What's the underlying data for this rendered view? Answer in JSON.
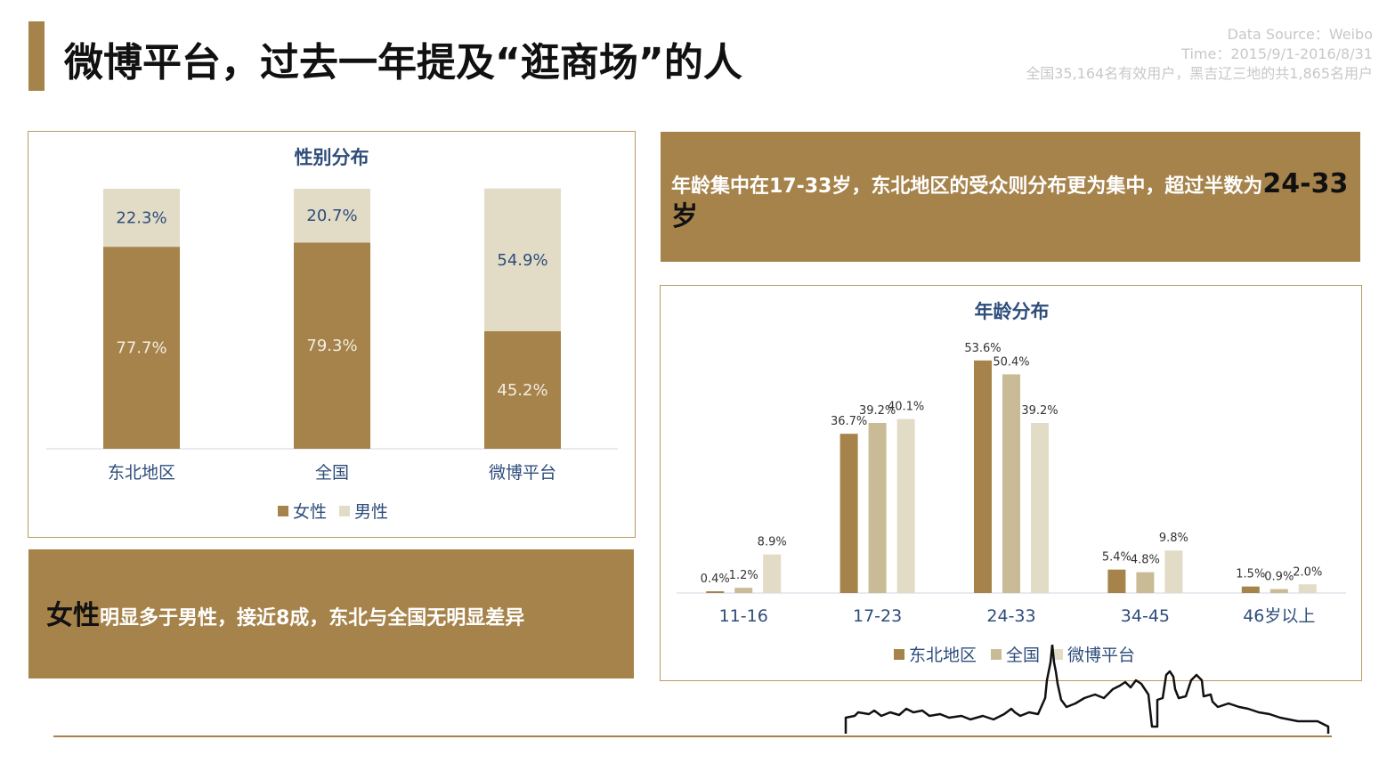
{
  "header": {
    "title": "微博平台，过去一年提及“逛商场”的人",
    "source_line1": "Data Source：Weibo",
    "source_line2": "Time：2015/9/1-2016/8/31",
    "source_line3": "全国35,164名有效用户，黑吉辽三地的共1,865名用户"
  },
  "gender_note": {
    "highlight": "女性",
    "rest": "明显多于男性，接近8成，东北与全国无明显差异"
  },
  "age_note": {
    "text_main": "年龄集中在17-33岁，东北地区的受众则分布更为集中，超过半数为",
    "text_big": "24-33岁"
  },
  "colors": {
    "gold": "#a6834b",
    "khaki": "#c9bb96",
    "cream": "#e2dcc6",
    "title_blue": "#2e4d7b"
  },
  "chart_data": [
    {
      "type": "bar",
      "stacked": true,
      "title": "性别分布",
      "categories": [
        "东北地区",
        "全国",
        "微博平台"
      ],
      "series": [
        {
          "name": "女性",
          "values": [
            77.7,
            79.3,
            45.2
          ],
          "labels": [
            "77.7%",
            "79.3%",
            "45.2%"
          ]
        },
        {
          "name": "男性",
          "values": [
            22.3,
            20.7,
            54.9
          ],
          "labels": [
            "22.3%",
            "20.7%",
            "54.9%"
          ]
        }
      ],
      "ylim": [
        0,
        100
      ],
      "legend": "bottom"
    },
    {
      "type": "bar",
      "title": "年龄分布",
      "categories": [
        "11-16",
        "17-23",
        "24-33",
        "34-45",
        "46岁以上"
      ],
      "series": [
        {
          "name": "东北地区",
          "values": [
            0.4,
            36.7,
            53.6,
            5.4,
            1.5
          ],
          "labels": [
            "0.4%",
            "36.7%",
            "53.6%",
            "5.4%",
            "1.5%"
          ]
        },
        {
          "name": "全国",
          "values": [
            1.2,
            39.2,
            50.4,
            4.8,
            0.9
          ],
          "labels": [
            "1.2%",
            "39.2%",
            "50.4%",
            "4.8%",
            "0.9%"
          ]
        },
        {
          "name": "微博平台",
          "values": [
            8.9,
            40.1,
            39.2,
            9.8,
            2.0
          ],
          "labels": [
            "8.9%",
            "40.1%",
            "39.2%",
            "9.8%",
            "2.0%"
          ]
        }
      ],
      "ylim": [
        0,
        55
      ],
      "legend": "bottom"
    }
  ]
}
